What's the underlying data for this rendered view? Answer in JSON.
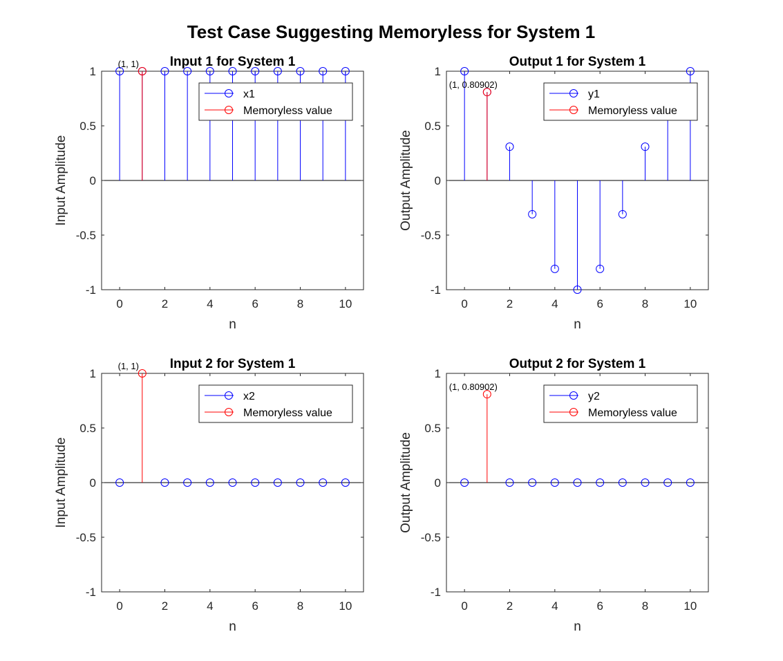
{
  "figure_title": "Test Case Suggesting Memoryless for System 1",
  "chart_data": [
    {
      "type": "stem",
      "title": "Input 1 for System 1",
      "xlabel": "n",
      "ylabel": "Input Amplitude",
      "xlim": [
        -0.8,
        10.8
      ],
      "ylim": [
        -1,
        1
      ],
      "xticks": [
        "0",
        "2",
        "4",
        "6",
        "8",
        "10"
      ],
      "yticks": [
        "-1",
        "-0.5",
        "0",
        "0.5",
        "1"
      ],
      "grid": false,
      "legend_position": "top-right",
      "legend": [
        "x1",
        "Memoryless value"
      ],
      "series": [
        {
          "name": "x1",
          "color": "#0000ff",
          "x": [
            0,
            1,
            2,
            3,
            4,
            5,
            6,
            7,
            8,
            9,
            10
          ],
          "y": [
            1,
            1,
            1,
            1,
            1,
            1,
            1,
            1,
            1,
            1,
            1
          ]
        },
        {
          "name": "Memoryless value",
          "color": "#ff0000",
          "x": [
            1
          ],
          "y": [
            1
          ]
        }
      ],
      "annotation": {
        "text": "(1, 1)",
        "x": 1,
        "y": 1
      }
    },
    {
      "type": "stem",
      "title": "Output 1 for System 1",
      "xlabel": "n",
      "ylabel": "Output Amplitude",
      "xlim": [
        -0.8,
        10.8
      ],
      "ylim": [
        -1,
        1
      ],
      "xticks": [
        "0",
        "2",
        "4",
        "6",
        "8",
        "10"
      ],
      "yticks": [
        "-1",
        "-0.5",
        "0",
        "0.5",
        "1"
      ],
      "grid": false,
      "legend_position": "top-right",
      "legend": [
        "y1",
        "Memoryless value"
      ],
      "series": [
        {
          "name": "y1",
          "color": "#0000ff",
          "x": [
            0,
            1,
            2,
            3,
            4,
            5,
            6,
            7,
            8,
            9,
            10
          ],
          "y": [
            1,
            0.80902,
            0.30902,
            -0.30902,
            -0.80902,
            -1,
            -0.80902,
            -0.30902,
            0.30902,
            0.80902,
            1
          ]
        },
        {
          "name": "Memoryless value",
          "color": "#ff0000",
          "x": [
            1
          ],
          "y": [
            0.80902
          ]
        }
      ],
      "annotation": {
        "text": "(1, 0.80902)",
        "x": 1,
        "y": 0.80902
      }
    },
    {
      "type": "stem",
      "title": "Input 2 for System 1",
      "xlabel": "n",
      "ylabel": "Input Amplitude",
      "xlim": [
        -0.8,
        10.8
      ],
      "ylim": [
        -1,
        1
      ],
      "xticks": [
        "0",
        "2",
        "4",
        "6",
        "8",
        "10"
      ],
      "yticks": [
        "-1",
        "-0.5",
        "0",
        "0.5",
        "1"
      ],
      "grid": false,
      "legend_position": "top-right",
      "legend": [
        "x2",
        "Memoryless value"
      ],
      "series": [
        {
          "name": "x2",
          "color": "#0000ff",
          "x": [
            0,
            2,
            3,
            4,
            5,
            6,
            7,
            8,
            9,
            10
          ],
          "y": [
            0,
            0,
            0,
            0,
            0,
            0,
            0,
            0,
            0,
            0
          ]
        },
        {
          "name": "Memoryless value",
          "color": "#ff0000",
          "x": [
            1
          ],
          "y": [
            1
          ]
        }
      ],
      "annotation": {
        "text": "(1, 1)",
        "x": 1,
        "y": 1
      }
    },
    {
      "type": "stem",
      "title": "Output 2 for System 1",
      "xlabel": "n",
      "ylabel": "Output Amplitude",
      "xlim": [
        -0.8,
        10.8
      ],
      "ylim": [
        -1,
        1
      ],
      "xticks": [
        "0",
        "2",
        "4",
        "6",
        "8",
        "10"
      ],
      "yticks": [
        "-1",
        "-0.5",
        "0",
        "0.5",
        "1"
      ],
      "grid": false,
      "legend_position": "top-right",
      "legend": [
        "y2",
        "Memoryless value"
      ],
      "series": [
        {
          "name": "y2",
          "color": "#0000ff",
          "x": [
            0,
            2,
            3,
            4,
            5,
            6,
            7,
            8,
            9,
            10
          ],
          "y": [
            0,
            0,
            0,
            0,
            0,
            0,
            0,
            0,
            0,
            0
          ]
        },
        {
          "name": "Memoryless value",
          "color": "#ff0000",
          "x": [
            1
          ],
          "y": [
            0.80902
          ]
        }
      ],
      "annotation": {
        "text": "(1, 0.80902)",
        "x": 1,
        "y": 0.80902
      }
    }
  ]
}
